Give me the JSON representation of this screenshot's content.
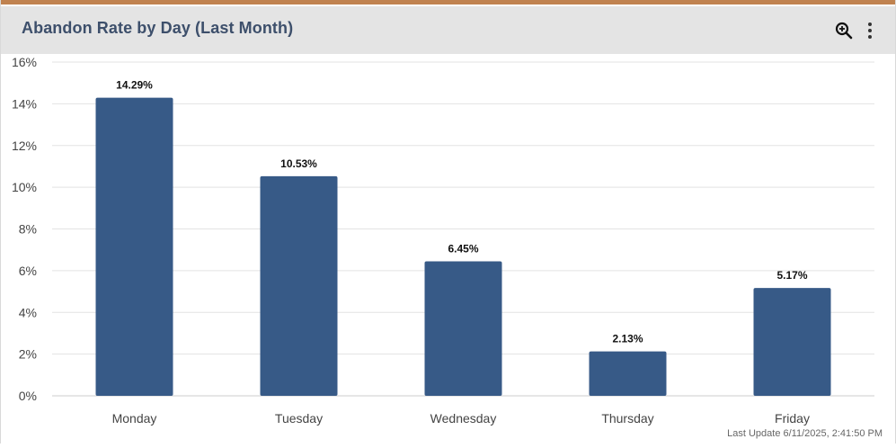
{
  "header": {
    "title": "Abandon Rate by Day (Last Month)",
    "zoom_icon": "zoom-in-icon",
    "menu_icon": "more-vertical-icon"
  },
  "footer": {
    "last_update": "Last Update 6/11/2025, 2:41:50 PM"
  },
  "colors": {
    "accent": "#c0824f",
    "bar": "#375a87",
    "grid": "#e3e3e3",
    "axis": "#cccccc",
    "tick_text": "#444444",
    "label_text": "#111111"
  },
  "chart_data": {
    "type": "bar",
    "title": "Abandon Rate by Day (Last Month)",
    "xlabel": "",
    "ylabel": "",
    "categories": [
      "Monday",
      "Tuesday",
      "Wednesday",
      "Thursday",
      "Friday"
    ],
    "values": [
      14.29,
      10.53,
      6.45,
      2.13,
      5.17
    ],
    "data_labels": [
      "14.29%",
      "10.53%",
      "6.45%",
      "2.13%",
      "5.17%"
    ],
    "ylim": [
      0,
      16
    ],
    "y_ticks": [
      0,
      2,
      4,
      6,
      8,
      10,
      12,
      14,
      16
    ],
    "y_tick_labels": [
      "0%",
      "2%",
      "4%",
      "6%",
      "8%",
      "10%",
      "12%",
      "14%",
      "16%"
    ],
    "grid": true,
    "legend": "none"
  }
}
